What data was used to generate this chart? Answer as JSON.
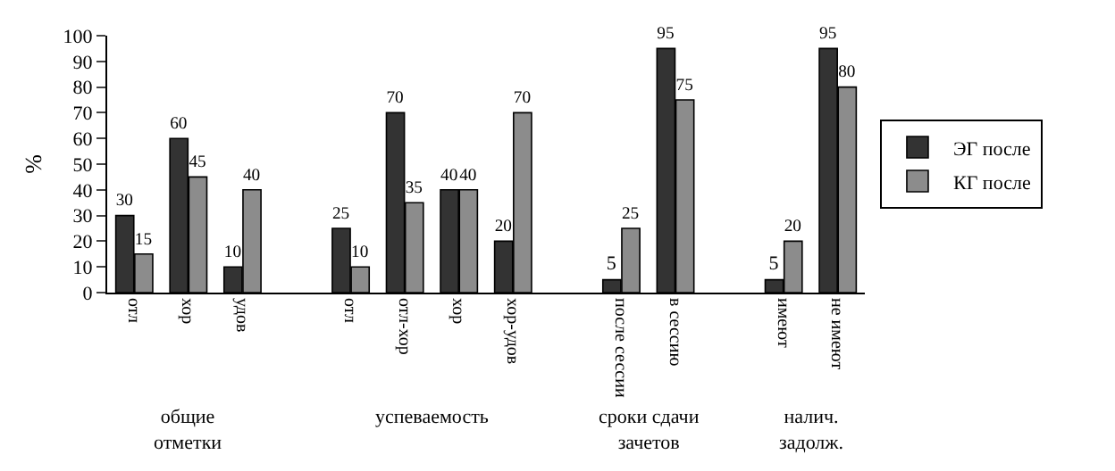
{
  "chart_data": {
    "type": "bar",
    "ylabel": "%",
    "categories": [
      "отл",
      "хор",
      "удов",
      null,
      "отл",
      "отл-хор",
      "хор",
      "хор-удов",
      null,
      "после сессии",
      "в сессию",
      null,
      "имеют",
      "не имеют"
    ],
    "series": [
      {
        "name": "ЭГ после",
        "color": "#333333",
        "values": [
          30,
          60,
          10,
          null,
          25,
          70,
          40,
          20,
          null,
          5,
          95,
          null,
          5,
          95
        ]
      },
      {
        "name": "КГ после",
        "color": "#8c8c8c",
        "values": [
          15,
          45,
          40,
          null,
          10,
          35,
          40,
          70,
          null,
          25,
          75,
          null,
          20,
          80
        ]
      }
    ],
    "annotations": [
      "общие отметки",
      "успеваемость",
      "сроки сдачи зачетов",
      "налич. задолж."
    ],
    "ylim": [
      0,
      100
    ],
    "yticks": [
      0,
      10,
      20,
      30,
      40,
      50,
      60,
      70,
      80,
      90,
      100
    ],
    "legend": "right",
    "data_labels": true
  }
}
